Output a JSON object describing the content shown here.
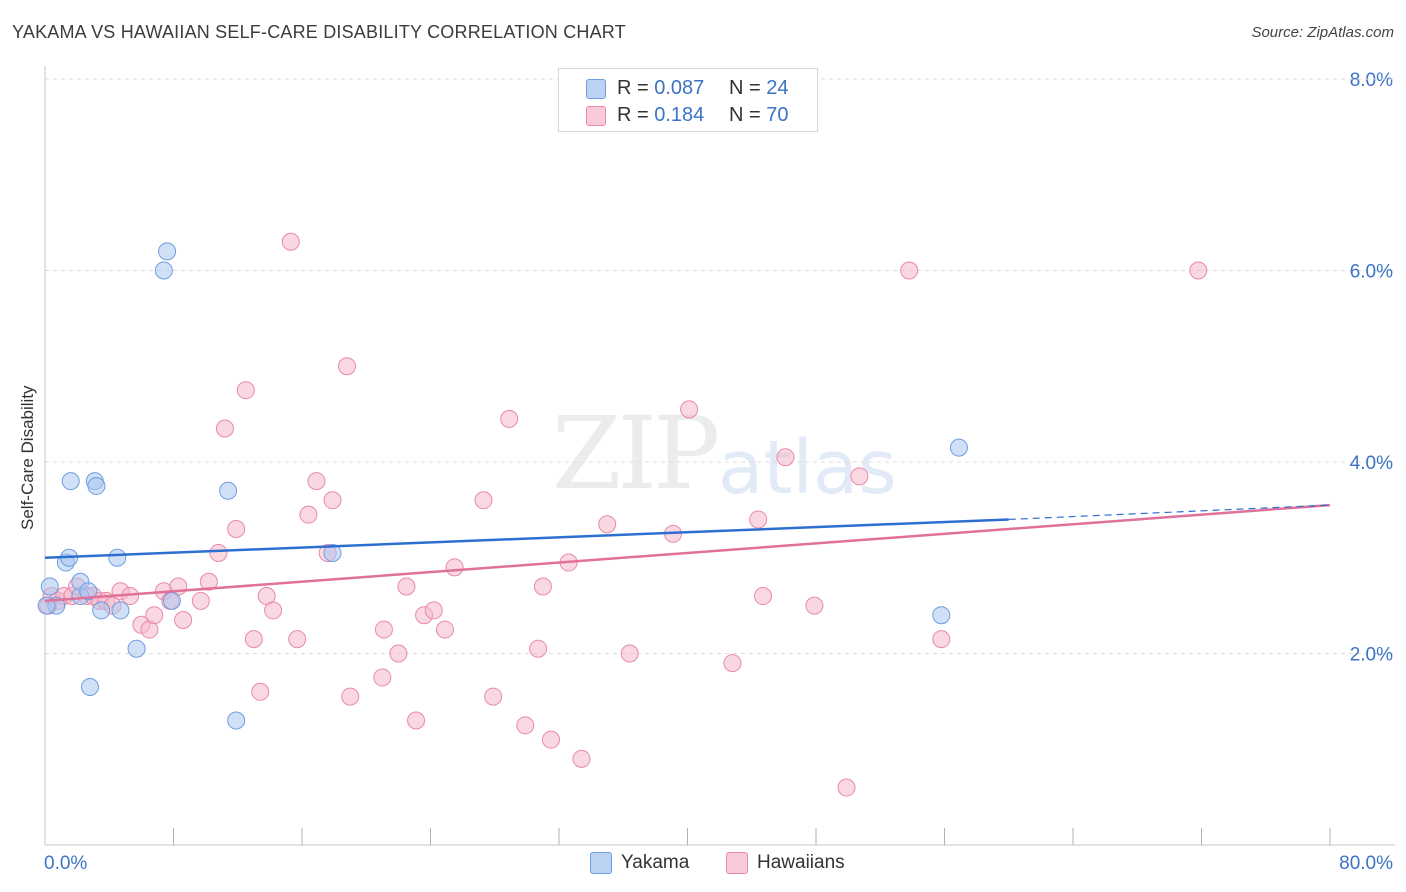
{
  "title": "YAKAMA VS HAWAIIAN SELF-CARE DISABILITY CORRELATION CHART",
  "source": "Source: ZipAtlas.com",
  "watermark": {
    "zip": "ZIP",
    "atlas": "atlas"
  },
  "legend_top": [
    {
      "r_label": "R = ",
      "r_value": "0.087",
      "n_label": "N = ",
      "n_value": "24",
      "color": "#a9c6f0"
    },
    {
      "r_label": "R = ",
      "r_value": "0.184",
      "n_label": "N = ",
      "n_value": "70",
      "color": "#f6b8cb"
    }
  ],
  "chart_data": {
    "type": "scatter",
    "title": "YAKAMA VS HAWAIIAN SELF-CARE DISABILITY CORRELATION CHART",
    "xlabel": "",
    "ylabel": "Self-Care Disability",
    "xlim": [
      0,
      80
    ],
    "ylim": [
      0,
      8.0
    ],
    "x_tick_labels": [
      "0.0%",
      "80.0%"
    ],
    "y_ticks": [
      2.0,
      4.0,
      6.0,
      8.0
    ],
    "y_tick_labels": [
      "2.0%",
      "4.0%",
      "6.0%",
      "8.0%"
    ],
    "grid": true,
    "legend_position": "bottom",
    "series": [
      {
        "name": "Yakama",
        "color": "#a9c6f0",
        "edge": "#6d9ee0",
        "line_color": "#2c6fd0",
        "trend": {
          "x": [
            0,
            60
          ],
          "y": [
            3.0,
            3.4
          ]
        },
        "trend_dashed": {
          "x": [
            60,
            80
          ],
          "y": [
            3.4,
            3.55
          ]
        },
        "points": [
          [
            0.3,
            2.7
          ],
          [
            0.7,
            2.5
          ],
          [
            1.3,
            2.95
          ],
          [
            1.5,
            3.0
          ],
          [
            1.6,
            3.8
          ],
          [
            2.2,
            2.6
          ],
          [
            2.2,
            2.75
          ],
          [
            2.7,
            2.65
          ],
          [
            2.8,
            1.65
          ],
          [
            3.1,
            3.8
          ],
          [
            3.2,
            3.75
          ],
          [
            3.5,
            2.45
          ],
          [
            4.5,
            3.0
          ],
          [
            4.7,
            2.45
          ],
          [
            5.7,
            2.05
          ],
          [
            7.4,
            6.0
          ],
          [
            7.6,
            6.2
          ],
          [
            7.9,
            2.55
          ],
          [
            11.4,
            3.7
          ],
          [
            11.9,
            1.3
          ],
          [
            17.9,
            3.05
          ],
          [
            55.8,
            2.4
          ],
          [
            56.9,
            4.15
          ],
          [
            0.1,
            2.5
          ]
        ]
      },
      {
        "name": "Hawaiians",
        "color": "#f6b8cb",
        "edge": "#e88aa8",
        "line_color": "#e0719a",
        "trend": {
          "x": [
            0,
            80
          ],
          "y": [
            2.55,
            3.55
          ]
        },
        "points": [
          [
            0.2,
            2.5
          ],
          [
            0.4,
            2.6
          ],
          [
            0.8,
            2.55
          ],
          [
            1.2,
            2.6
          ],
          [
            1.7,
            2.6
          ],
          [
            2.0,
            2.7
          ],
          [
            2.6,
            2.6
          ],
          [
            3.0,
            2.6
          ],
          [
            3.4,
            2.55
          ],
          [
            3.8,
            2.55
          ],
          [
            4.2,
            2.5
          ],
          [
            4.7,
            2.65
          ],
          [
            5.3,
            2.6
          ],
          [
            6.0,
            2.3
          ],
          [
            6.5,
            2.25
          ],
          [
            6.8,
            2.4
          ],
          [
            7.4,
            2.65
          ],
          [
            7.8,
            2.55
          ],
          [
            8.3,
            2.7
          ],
          [
            8.6,
            2.35
          ],
          [
            9.7,
            2.55
          ],
          [
            10.2,
            2.75
          ],
          [
            10.8,
            3.05
          ],
          [
            11.2,
            4.35
          ],
          [
            11.9,
            3.3
          ],
          [
            12.5,
            4.75
          ],
          [
            13.0,
            2.15
          ],
          [
            13.4,
            1.6
          ],
          [
            13.8,
            2.6
          ],
          [
            14.2,
            2.45
          ],
          [
            15.3,
            6.3
          ],
          [
            15.7,
            2.15
          ],
          [
            16.4,
            3.45
          ],
          [
            16.9,
            3.8
          ],
          [
            17.6,
            3.05
          ],
          [
            17.9,
            3.6
          ],
          [
            18.8,
            5.0
          ],
          [
            19.0,
            1.55
          ],
          [
            21.0,
            1.75
          ],
          [
            21.1,
            2.25
          ],
          [
            22.0,
            2.0
          ],
          [
            22.5,
            2.7
          ],
          [
            23.1,
            1.3
          ],
          [
            23.6,
            2.4
          ],
          [
            24.2,
            2.45
          ],
          [
            24.9,
            2.25
          ],
          [
            25.5,
            2.9
          ],
          [
            27.3,
            3.6
          ],
          [
            27.9,
            1.55
          ],
          [
            28.9,
            4.45
          ],
          [
            29.9,
            1.25
          ],
          [
            30.7,
            2.05
          ],
          [
            31.0,
            2.7
          ],
          [
            31.5,
            1.1
          ],
          [
            32.6,
            2.95
          ],
          [
            33.4,
            0.9
          ],
          [
            35.0,
            3.35
          ],
          [
            36.4,
            2.0
          ],
          [
            39.1,
            3.25
          ],
          [
            40.1,
            4.55
          ],
          [
            42.8,
            1.9
          ],
          [
            44.4,
            3.4
          ],
          [
            44.7,
            2.6
          ],
          [
            46.1,
            4.05
          ],
          [
            47.9,
            2.5
          ],
          [
            49.9,
            0.6
          ],
          [
            50.7,
            3.85
          ],
          [
            53.8,
            6.0
          ],
          [
            55.8,
            2.15
          ],
          [
            71.8,
            6.0
          ]
        ]
      }
    ]
  }
}
